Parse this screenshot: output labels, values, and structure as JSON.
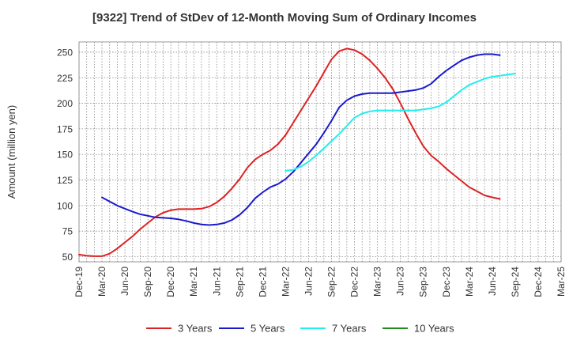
{
  "chart_data": {
    "type": "line",
    "title": "[9322]  Trend of StDev of 12-Month Moving Sum of Ordinary Incomes",
    "xlabel": "",
    "ylabel": "Amount (million yen)",
    "ylim": [
      45,
      260
    ],
    "yticks": [
      50,
      75,
      100,
      125,
      150,
      175,
      200,
      225,
      250
    ],
    "x_tick_labels": [
      "Dec-19",
      "Mar-20",
      "Jun-20",
      "Sep-20",
      "Dec-20",
      "Mar-21",
      "Jun-21",
      "Sep-21",
      "Dec-21",
      "Mar-22",
      "Jun-22",
      "Sep-22",
      "Dec-22",
      "Mar-23",
      "Jun-23",
      "Sep-23",
      "Dec-23",
      "Mar-24",
      "Jun-24",
      "Sep-24",
      "Dec-24",
      "Mar-25"
    ],
    "grid": true,
    "legend_position": "bottom",
    "series": [
      {
        "name": "3 Years",
        "color": "#dd2222",
        "start_index": 0,
        "values": [
          52,
          51,
          50.5,
          50.5,
          53,
          58,
          64,
          70,
          77,
          83,
          89,
          93,
          95.5,
          96.5,
          96.5,
          96.5,
          97,
          99,
          103,
          109,
          117,
          126,
          137,
          145,
          150,
          154,
          160,
          169,
          181,
          193,
          205,
          217,
          230,
          243,
          251,
          253.5,
          252,
          248,
          242,
          234,
          225,
          214,
          200,
          185,
          171,
          158,
          149,
          143,
          136,
          130,
          124,
          118,
          114,
          110,
          108,
          106.5
        ]
      },
      {
        "name": "5 Years",
        "color": "#1a1acc",
        "start_index": 3,
        "values": [
          108,
          104,
          100,
          97,
          94,
          91.5,
          90,
          88.5,
          88,
          87.5,
          86.5,
          85,
          83,
          81.5,
          81,
          81.5,
          83,
          86,
          91,
          98,
          107,
          113,
          118,
          121,
          126,
          133,
          142,
          151,
          160,
          171,
          183,
          196,
          203,
          207,
          209,
          210,
          210,
          210,
          210,
          211,
          212,
          213,
          215,
          219,
          226,
          232,
          237,
          242,
          245,
          247,
          248,
          248,
          247
        ]
      },
      {
        "name": "7 Years",
        "color": "#22eeee",
        "start_index": 27,
        "values": [
          134,
          135,
          138,
          143,
          149,
          156,
          163,
          170,
          178,
          186,
          190,
          192,
          193,
          193,
          193,
          193,
          193,
          193,
          194,
          195,
          197,
          201,
          207,
          213,
          218,
          221,
          224,
          226,
          227,
          228,
          229
        ]
      },
      {
        "name": "10 Years",
        "color": "#228b22",
        "start_index": 0,
        "values": []
      }
    ]
  }
}
